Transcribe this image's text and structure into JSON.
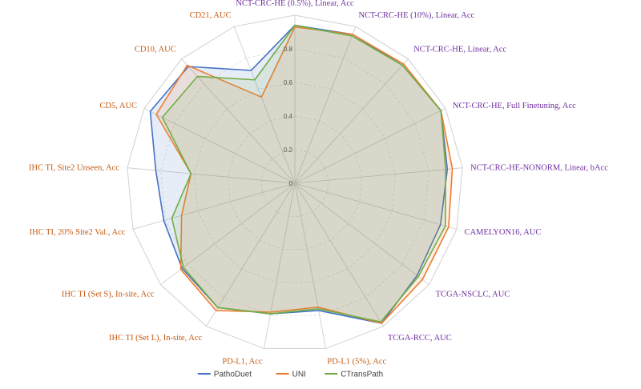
{
  "chart_data": {
    "type": "radar",
    "rlim": [
      0,
      1
    ],
    "ticks": [
      "0",
      "0.2",
      "0.4",
      "0.6",
      "0.8"
    ],
    "tick_values": [
      0,
      0.2,
      0.4,
      0.6,
      0.8
    ],
    "grid": true,
    "legend_position": "bottom",
    "categories": [
      "NCT-CRC-HE (0.5%), Linear, Acc",
      "NCT-CRC-HE (10%), Linear, Acc",
      "NCT-CRC-HE, Linear, Acc",
      "NCT-CRC-HE, Full Finetuning, Acc",
      "NCT-CRC-HE-NONORM, Linear, bAcc",
      "CAMELYON16, AUC",
      "TCGA-NSCLC, AUC",
      "TCGA-RCC, AUC",
      "PD-L1 (5%), Acc",
      "PD-L1, Acc",
      "IHC TI (Set L), In-site, Acc",
      "IHC TI (Set S), In-site, Acc",
      "IHC TI, 20% Site2 Val., Acc",
      "IHC TI, Site2 Unseen, Acc",
      "CD5, AUC",
      "CD10, AUC",
      "CD21, AUC"
    ],
    "category_colors": [
      "#7030a0",
      "#7030a0",
      "#7030a0",
      "#7030a0",
      "#7030a0",
      "#7030a0",
      "#7030a0",
      "#7030a0",
      "#c55a11",
      "#c55a11",
      "#c55a11",
      "#c55a11",
      "#c55a11",
      "#c55a11",
      "#c55a11",
      "#c55a11",
      "#c55a11"
    ],
    "series": [
      {
        "name": "PathoDuet",
        "color": "#4472c4",
        "values": [
          0.94,
          0.95,
          0.95,
          0.97,
          0.91,
          0.9,
          0.91,
          0.98,
          0.77,
          0.79,
          0.87,
          0.84,
          0.81,
          0.83,
          0.96,
          0.94,
          0.72
        ]
      },
      {
        "name": "UNI",
        "color": "#ed7d31",
        "values": [
          0.93,
          0.95,
          0.96,
          0.97,
          0.94,
          0.95,
          0.95,
          0.98,
          0.75,
          0.78,
          0.89,
          0.85,
          0.7,
          0.62,
          0.92,
          0.95,
          0.55
        ]
      },
      {
        "name": "CTransPath",
        "color": "#70ad47",
        "values": [
          0.94,
          0.94,
          0.95,
          0.97,
          0.9,
          0.93,
          0.92,
          0.97,
          0.76,
          0.79,
          0.87,
          0.83,
          0.76,
          0.62,
          0.88,
          0.86,
          0.66
        ]
      }
    ]
  }
}
